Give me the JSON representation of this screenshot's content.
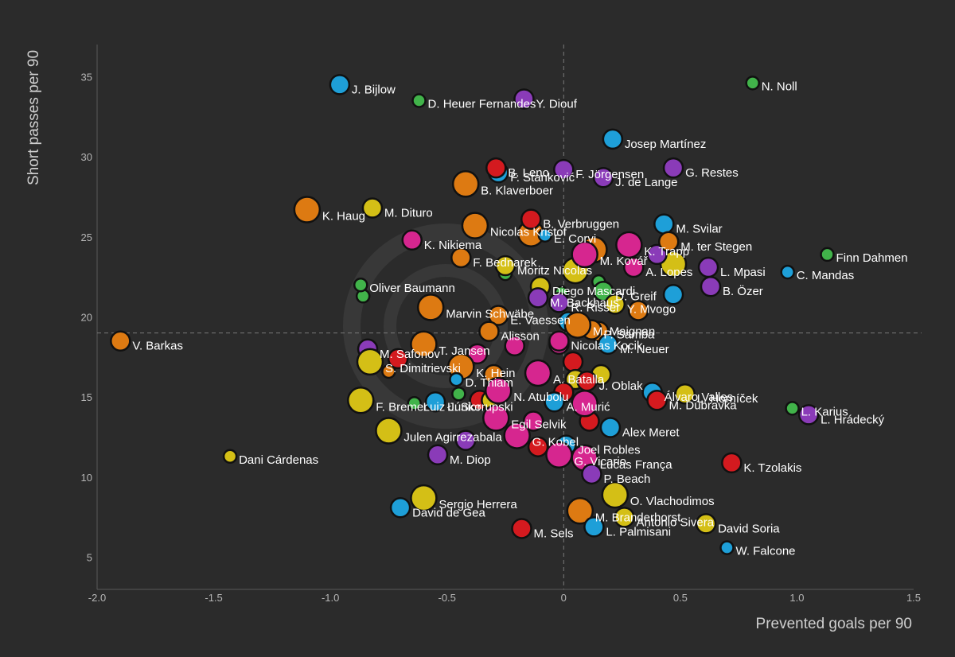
{
  "chart_data": {
    "type": "scatter",
    "title": "",
    "xlabel": "Prevented goals per 90",
    "ylabel": "Short passes per 90",
    "xlim": [
      -2.0,
      1.5
    ],
    "ylim": [
      3.0,
      37.0
    ],
    "xticks": [
      -2.0,
      -1.5,
      -1.0,
      -0.5,
      0,
      0.5,
      1.0,
      1.5
    ],
    "yticks": [
      5,
      10,
      15,
      20,
      25,
      30,
      35
    ],
    "xtick_labels": [
      "-2.0",
      "-1.5",
      "-1.0",
      "-0.5",
      "0",
      "0.5",
      "1.0",
      "1.5"
    ],
    "ytick_labels": [
      "5",
      "10",
      "15",
      "20",
      "25",
      "30",
      "35"
    ],
    "reference_lines": {
      "x": 0,
      "y": 19
    },
    "grid": false,
    "colors": {
      "blue": "#1e9fd8",
      "purple": "#8a3bb8",
      "green": "#41b34a",
      "orange": "#dd7a12",
      "yellow": "#d4bf16",
      "red": "#d41a1f",
      "pink": "#d6268f"
    },
    "labeled_points": [
      {
        "name": "J. Bijlow",
        "x": -0.96,
        "y": 34.5,
        "size": "m",
        "color": "blue"
      },
      {
        "name": "D. Heuer Fernandes",
        "x": -0.62,
        "y": 33.5,
        "size": "s",
        "color": "green"
      },
      {
        "name": "Y. Diouf",
        "x": -0.17,
        "y": 33.6,
        "size": "m",
        "color": "purple"
      },
      {
        "name": "N. Noll",
        "x": 0.81,
        "y": 34.6,
        "size": "s",
        "color": "green"
      },
      {
        "name": "Josep Martínez",
        "x": 0.21,
        "y": 31.1,
        "size": "m",
        "color": "blue"
      },
      {
        "name": "F. Stanković",
        "x": -0.28,
        "y": 29.0,
        "size": "m",
        "color": "blue"
      },
      {
        "name": "B. Leno",
        "x": -0.29,
        "y": 29.3,
        "size": "m",
        "color": "red"
      },
      {
        "name": "F. Jörgensen",
        "x": 0.0,
        "y": 29.2,
        "size": "m",
        "color": "purple"
      },
      {
        "name": "G. Restes",
        "x": 0.47,
        "y": 29.3,
        "size": "m",
        "color": "purple"
      },
      {
        "name": "B. Klaverboer",
        "x": -0.42,
        "y": 28.3,
        "size": "l",
        "color": "orange"
      },
      {
        "name": "J. de Lange",
        "x": 0.17,
        "y": 28.7,
        "size": "m",
        "color": "purple"
      },
      {
        "name": "K. Haug",
        "x": -1.1,
        "y": 26.7,
        "size": "l",
        "color": "orange"
      },
      {
        "name": "M. Dituro",
        "x": -0.82,
        "y": 26.8,
        "size": "m",
        "color": "yellow"
      },
      {
        "name": "B. Verbruggen",
        "x": -0.14,
        "y": 26.1,
        "size": "m",
        "color": "red"
      },
      {
        "name": "M. Svilar",
        "x": 0.43,
        "y": 25.8,
        "size": "m",
        "color": "blue"
      },
      {
        "name": "Finn Dahmen",
        "x": 1.13,
        "y": 23.9,
        "size": "s",
        "color": "green"
      },
      {
        "name": "K. Nikiema",
        "x": -0.65,
        "y": 24.8,
        "size": "m",
        "color": "pink"
      },
      {
        "name": "Nicolas Kristof",
        "x": -0.38,
        "y": 25.7,
        "size": "l",
        "color": "orange"
      },
      {
        "name": "E. Corvi",
        "x": -0.08,
        "y": 25.1,
        "size": "s",
        "color": "blue"
      },
      {
        "name": "K. Trapp",
        "x": 0.28,
        "y": 24.5,
        "size": "l",
        "color": "pink"
      },
      {
        "name": "M. ter Stegen",
        "x": 0.45,
        "y": 24.7,
        "size": "m",
        "color": "orange"
      },
      {
        "name": "M. Kovář",
        "x": 0.09,
        "y": 23.9,
        "size": "l",
        "color": "pink"
      },
      {
        "name": "F. Bednarek",
        "x": -0.44,
        "y": 23.7,
        "size": "m",
        "color": "orange"
      },
      {
        "name": "Moritz Nicolas",
        "x": -0.25,
        "y": 23.2,
        "size": "m",
        "color": "yellow"
      },
      {
        "name": "A. Lopes",
        "x": 0.3,
        "y": 23.1,
        "size": "m",
        "color": "pink"
      },
      {
        "name": "L. Mpasi",
        "x": 0.62,
        "y": 23.1,
        "size": "m",
        "color": "purple"
      },
      {
        "name": "C. Mandas",
        "x": 0.96,
        "y": 22.8,
        "size": "s",
        "color": "blue"
      },
      {
        "name": "Oliver Baumann",
        "x": -0.87,
        "y": 22.0,
        "size": "s",
        "color": "green"
      },
      {
        "name": "Diego Mascardi",
        "x": -0.1,
        "y": 21.9,
        "size": "m",
        "color": "yellow"
      },
      {
        "name": "B. Özer",
        "x": 0.63,
        "y": 21.9,
        "size": "m",
        "color": "purple"
      },
      {
        "name": "D. Greif",
        "x": 0.17,
        "y": 21.6,
        "size": "m",
        "color": "green"
      },
      {
        "name": "M. Backhaus",
        "x": -0.11,
        "y": 21.2,
        "size": "m",
        "color": "purple"
      },
      {
        "name": "Y. Mvogo",
        "x": 0.22,
        "y": 20.8,
        "size": "m",
        "color": "yellow"
      },
      {
        "name": "R. Risser",
        "x": -0.02,
        "y": 20.9,
        "size": "m",
        "color": "purple"
      },
      {
        "name": "Marvin Schwäbe",
        "x": -0.57,
        "y": 20.6,
        "size": "l",
        "color": "orange"
      },
      {
        "name": "E. Vaessen",
        "x": -0.28,
        "y": 20.1,
        "size": "m",
        "color": "orange"
      },
      {
        "name": "Alisson",
        "x": -0.32,
        "y": 19.1,
        "size": "m",
        "color": "orange"
      },
      {
        "name": "P. Samba",
        "x": 0.12,
        "y": 19.2,
        "size": "m",
        "color": "orange"
      },
      {
        "name": "M. Maignan",
        "x": 0.06,
        "y": 19.5,
        "size": "l",
        "color": "orange"
      },
      {
        "name": "V. Barkas",
        "x": -1.9,
        "y": 18.5,
        "size": "m",
        "color": "orange"
      },
      {
        "name": "T. Jansen",
        "x": -0.6,
        "y": 18.3,
        "size": "l",
        "color": "orange"
      },
      {
        "name": "Nicolas Kocik",
        "x": -0.02,
        "y": 18.5,
        "size": "m",
        "color": "pink"
      },
      {
        "name": "M. Neuer",
        "x": 0.19,
        "y": 18.3,
        "size": "m",
        "color": "blue"
      },
      {
        "name": "M. Safonov",
        "x": -0.84,
        "y": 18.0,
        "size": "m",
        "color": "purple"
      },
      {
        "name": "S. Dimitrievski",
        "x": -0.83,
        "y": 17.2,
        "size": "l",
        "color": "yellow"
      },
      {
        "name": "K. Hein",
        "x": -0.44,
        "y": 16.9,
        "size": "l",
        "color": "orange"
      },
      {
        "name": "A. Batalla",
        "x": -0.11,
        "y": 16.5,
        "size": "l",
        "color": "pink"
      },
      {
        "name": "J. Oblak",
        "x": 0.1,
        "y": 16.0,
        "size": "m",
        "color": "red"
      },
      {
        "name": "D. Thiam",
        "x": -0.46,
        "y": 16.1,
        "size": "s",
        "color": "blue"
      },
      {
        "name": "Álvaro Valles",
        "x": 0.38,
        "y": 15.3,
        "size": "m",
        "color": "blue"
      },
      {
        "name": "M. Dúbravka",
        "x": 0.4,
        "y": 14.8,
        "size": "m",
        "color": "red"
      },
      {
        "name": "L. Horníček",
        "x": 0.52,
        "y": 15.2,
        "size": "m",
        "color": "yellow"
      },
      {
        "name": "N. Atubolu",
        "x": -0.28,
        "y": 15.4,
        "size": "l",
        "color": "pink"
      },
      {
        "name": "A. Murić",
        "x": -0.04,
        "y": 14.7,
        "size": "m",
        "color": "blue"
      },
      {
        "name": "L. Karius",
        "x": 0.98,
        "y": 14.3,
        "size": "s",
        "color": "green"
      },
      {
        "name": "L. Hrádecký",
        "x": 1.05,
        "y": 13.9,
        "size": "m",
        "color": "purple"
      },
      {
        "name": "F. Bremer",
        "x": -0.87,
        "y": 14.8,
        "size": "l",
        "color": "yellow"
      },
      {
        "name": "Luiz Júnior",
        "x": -0.64,
        "y": 14.6,
        "size": "s",
        "color": "green"
      },
      {
        "name": "Ł. Skorupski",
        "x": -0.55,
        "y": 14.7,
        "size": "m",
        "color": "blue"
      },
      {
        "name": "Egil Selvik",
        "x": -0.29,
        "y": 13.7,
        "size": "l",
        "color": "pink"
      },
      {
        "name": "Alex Meret",
        "x": 0.2,
        "y": 13.1,
        "size": "m",
        "color": "blue"
      },
      {
        "name": "Julen Agirrezabala",
        "x": -0.75,
        "y": 12.9,
        "size": "l",
        "color": "yellow"
      },
      {
        "name": "G. Kobel",
        "x": -0.2,
        "y": 12.6,
        "size": "l",
        "color": "pink"
      },
      {
        "name": "Joel Robles",
        "x": 0.01,
        "y": 12.0,
        "size": "m",
        "color": "blue"
      },
      {
        "name": "G. Vicario",
        "x": -0.02,
        "y": 11.4,
        "size": "l",
        "color": "pink"
      },
      {
        "name": "Lucas França",
        "x": 0.09,
        "y": 11.2,
        "size": "l",
        "color": "pink"
      },
      {
        "name": "Dani Cárdenas",
        "x": -1.43,
        "y": 11.3,
        "size": "s",
        "color": "yellow"
      },
      {
        "name": "M. Diop",
        "x": -0.54,
        "y": 11.4,
        "size": "m",
        "color": "purple"
      },
      {
        "name": "K. Tzolakis",
        "x": 0.72,
        "y": 10.9,
        "size": "m",
        "color": "red"
      },
      {
        "name": "P. Beach",
        "x": 0.12,
        "y": 10.2,
        "size": "m",
        "color": "purple"
      },
      {
        "name": "Sergio Herrera",
        "x": -0.6,
        "y": 8.7,
        "size": "l",
        "color": "yellow"
      },
      {
        "name": "O. Vlachodimos",
        "x": 0.22,
        "y": 8.9,
        "size": "l",
        "color": "yellow"
      },
      {
        "name": "David de Gea",
        "x": -0.7,
        "y": 8.1,
        "size": "m",
        "color": "blue"
      },
      {
        "name": "M. Branderhorst",
        "x": 0.07,
        "y": 7.9,
        "size": "l",
        "color": "orange"
      },
      {
        "name": "Antonio Sivera",
        "x": 0.26,
        "y": 7.5,
        "size": "m",
        "color": "yellow"
      },
      {
        "name": "David Soria",
        "x": 0.61,
        "y": 7.1,
        "size": "m",
        "color": "yellow"
      },
      {
        "name": "L. Palmisani",
        "x": 0.13,
        "y": 6.9,
        "size": "m",
        "color": "blue"
      },
      {
        "name": "M. Sels",
        "x": -0.18,
        "y": 6.8,
        "size": "m",
        "color": "red"
      },
      {
        "name": "W. Falcone",
        "x": 0.7,
        "y": 5.6,
        "size": "s",
        "color": "blue"
      }
    ],
    "unlabeled_points": [
      {
        "x": -0.45,
        "y": 15.2,
        "size": "s",
        "color": "green"
      },
      {
        "x": -0.36,
        "y": 14.8,
        "size": "m",
        "color": "red"
      },
      {
        "x": -0.75,
        "y": 16.6,
        "size": "s",
        "color": "orange"
      },
      {
        "x": -0.71,
        "y": 17.4,
        "size": "m",
        "color": "red"
      },
      {
        "x": -0.86,
        "y": 21.3,
        "size": "s",
        "color": "green"
      },
      {
        "x": -0.25,
        "y": 22.7,
        "size": "s",
        "color": "green"
      },
      {
        "x": -0.01,
        "y": 21.5,
        "size": "s",
        "color": "green"
      },
      {
        "x": 0.15,
        "y": 22.2,
        "size": "s",
        "color": "green"
      },
      {
        "x": 0.32,
        "y": 20.4,
        "size": "m",
        "color": "orange"
      },
      {
        "x": 0.47,
        "y": 21.4,
        "size": "m",
        "color": "blue"
      },
      {
        "x": 0.47,
        "y": 23.3,
        "size": "l",
        "color": "yellow"
      },
      {
        "x": 0.4,
        "y": 23.9,
        "size": "m",
        "color": "purple"
      },
      {
        "x": 0.05,
        "y": 22.9,
        "size": "l",
        "color": "yellow"
      },
      {
        "x": -0.14,
        "y": 25.2,
        "size": "l",
        "color": "orange"
      },
      {
        "x": 0.13,
        "y": 24.2,
        "size": "l",
        "color": "orange"
      },
      {
        "x": 0.02,
        "y": 19.7,
        "size": "m",
        "color": "blue"
      },
      {
        "x": 0.15,
        "y": 19.1,
        "size": "m",
        "color": "orange"
      },
      {
        "x": -0.02,
        "y": 18.3,
        "size": "m",
        "color": "pink"
      },
      {
        "x": 0.04,
        "y": 17.2,
        "size": "m",
        "color": "red"
      },
      {
        "x": -0.21,
        "y": 18.2,
        "size": "m",
        "color": "pink"
      },
      {
        "x": -0.37,
        "y": 17.7,
        "size": "m",
        "color": "pink"
      },
      {
        "x": -0.3,
        "y": 16.4,
        "size": "m",
        "color": "orange"
      },
      {
        "x": 0.05,
        "y": 16.1,
        "size": "m",
        "color": "yellow"
      },
      {
        "x": 0.16,
        "y": 16.4,
        "size": "m",
        "color": "yellow"
      },
      {
        "x": 0.0,
        "y": 15.3,
        "size": "m",
        "color": "red"
      },
      {
        "x": 0.11,
        "y": 13.5,
        "size": "m",
        "color": "red"
      },
      {
        "x": 0.09,
        "y": 14.6,
        "size": "l",
        "color": "pink"
      },
      {
        "x": -0.31,
        "y": 14.8,
        "size": "m",
        "color": "yellow"
      },
      {
        "x": -0.13,
        "y": 13.5,
        "size": "m",
        "color": "pink"
      },
      {
        "x": -0.11,
        "y": 11.9,
        "size": "m",
        "color": "red"
      },
      {
        "x": -0.42,
        "y": 12.3,
        "size": "m",
        "color": "purple"
      }
    ]
  }
}
